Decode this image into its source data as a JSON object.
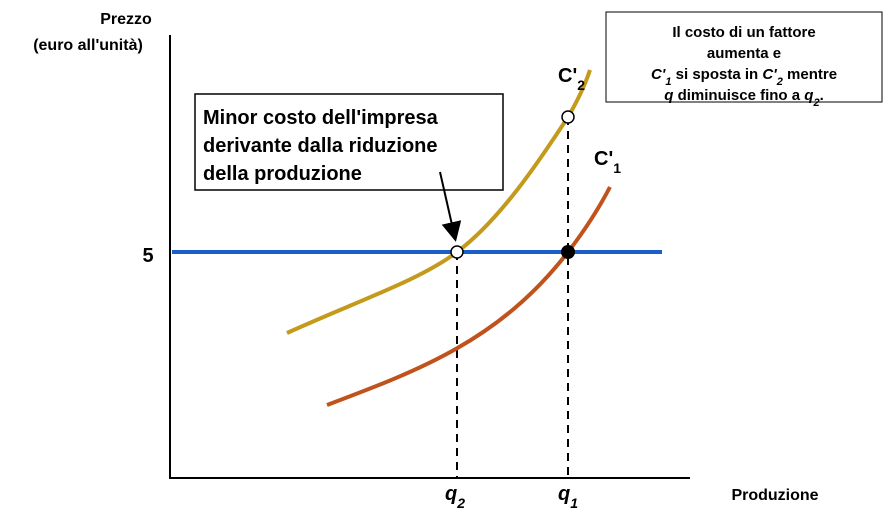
{
  "axes": {
    "y_label": [
      "Prezzo",
      "(euro all'unità)"
    ],
    "x_label": "Produzione",
    "price_label": "5"
  },
  "curves": [
    {
      "label": [
        {
          "text": "C'",
          "style": "b"
        },
        {
          "text": "2",
          "style": "sub"
        }
      ],
      "color": "#c49a1c"
    },
    {
      "label": [
        {
          "text": "C'",
          "style": "b"
        },
        {
          "text": "1",
          "style": "sub"
        }
      ],
      "color": "#c0521c"
    }
  ],
  "price_line_color": "#1a5fc8",
  "quantities": [
    [
      {
        "text": "q",
        "style": "i"
      },
      {
        "text": "2",
        "style": "sub-i"
      }
    ],
    [
      {
        "text": "q",
        "style": "i"
      },
      {
        "text": "1",
        "style": "sub-i"
      }
    ]
  ],
  "callout": {
    "lines": [
      "Minor costo dell'impresa",
      "derivante dalla riduzione",
      "della produzione"
    ]
  },
  "note": {
    "lines": [
      [
        {
          "text": "Il costo di un fattore",
          "style": "b"
        }
      ],
      [
        {
          "text": "aumenta e",
          "style": "b"
        }
      ],
      [
        {
          "text": "C'",
          "style": "i"
        },
        {
          "text": "1",
          "style": "sub-i"
        },
        {
          "text": " si sposta in ",
          "style": "b"
        },
        {
          "text": "C'",
          "style": "i"
        },
        {
          "text": "2",
          "style": "sub-i"
        },
        {
          "text": " mentre",
          "style": "b"
        }
      ],
      [
        {
          "text": "q",
          "style": "i"
        },
        {
          "text": " diminuisce fino a  ",
          "style": "b"
        },
        {
          "text": "q",
          "style": "i"
        },
        {
          "text": "2",
          "style": "sub-i"
        },
        {
          "text": ".",
          "style": "b"
        }
      ]
    ]
  }
}
